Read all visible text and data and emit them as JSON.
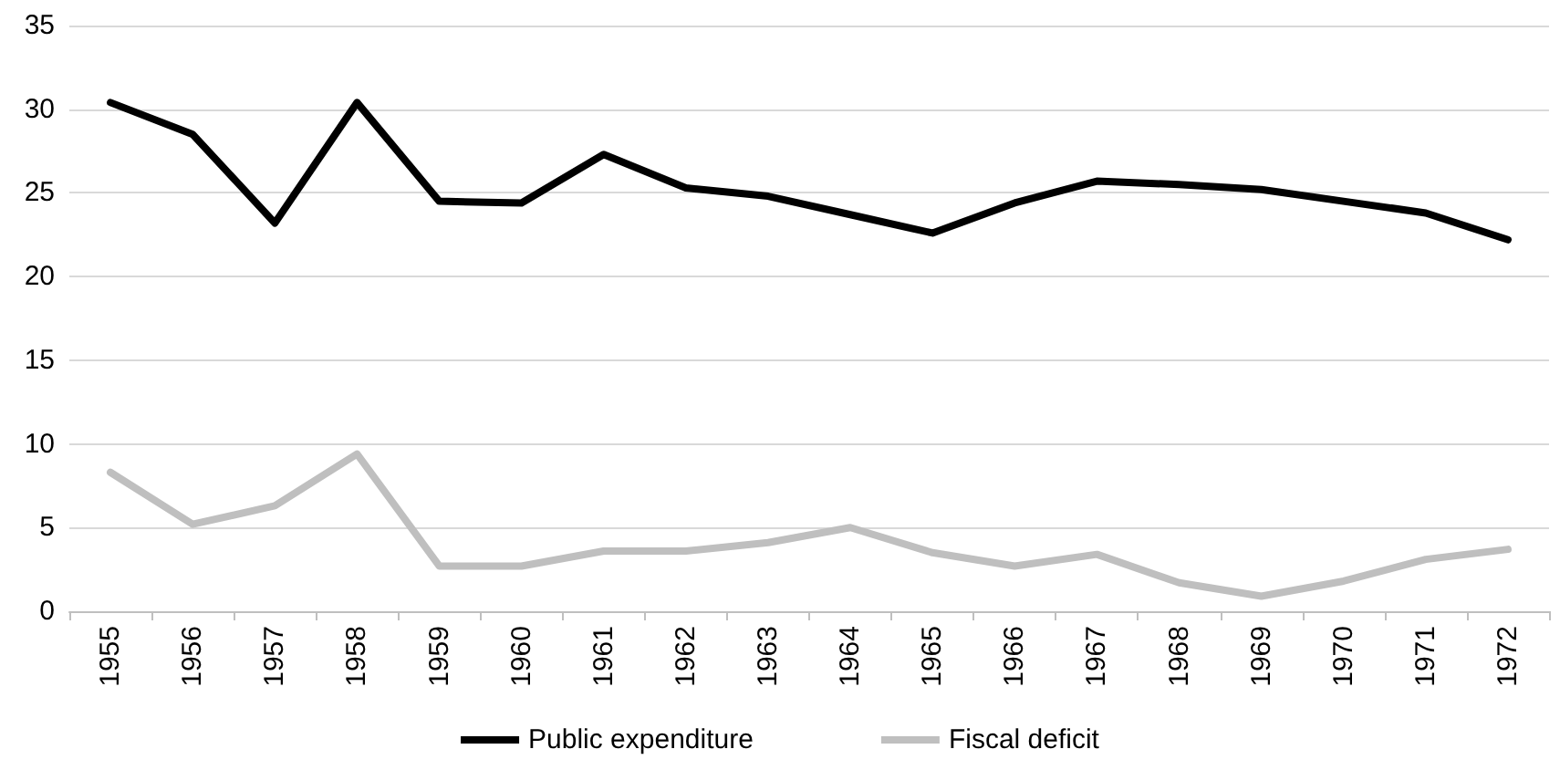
{
  "chart_data": {
    "type": "line",
    "categories": [
      "1955",
      "1956",
      "1957",
      "1958",
      "1959",
      "1960",
      "1961",
      "1962",
      "1963",
      "1964",
      "1965",
      "1966",
      "1967",
      "1968",
      "1969",
      "1970",
      "1971",
      "1972"
    ],
    "series": [
      {
        "name": "Public expenditure",
        "color": "#000000",
        "values": [
          30.4,
          28.5,
          23.2,
          30.4,
          24.5,
          24.4,
          27.3,
          25.3,
          24.8,
          23.7,
          22.6,
          24.4,
          25.7,
          25.5,
          25.2,
          24.5,
          23.8,
          22.2
        ]
      },
      {
        "name": "Fiscal deficit",
        "color": "#bfbfbf",
        "values": [
          8.3,
          5.2,
          6.3,
          9.4,
          2.7,
          2.7,
          3.6,
          3.6,
          4.1,
          5.0,
          3.5,
          2.7,
          3.4,
          1.7,
          0.9,
          1.8,
          3.1,
          3.7
        ]
      }
    ],
    "ylim": [
      0,
      35
    ],
    "yticks": [
      0,
      5,
      10,
      15,
      20,
      25,
      30,
      35
    ],
    "grid": "y",
    "legend": "bottom",
    "marker": "none",
    "line_style": "solid"
  }
}
